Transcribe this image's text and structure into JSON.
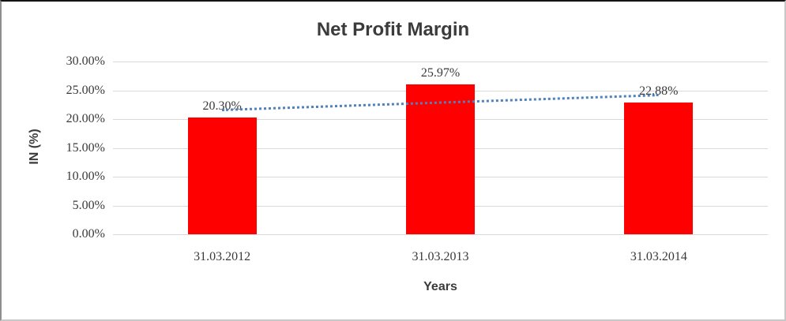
{
  "chart_data": {
    "type": "bar",
    "title": "Net Profit Margin",
    "xlabel": "Years",
    "ylabel": "IN (%)",
    "categories": [
      "31.03.2012",
      "31.03.2013",
      "31.03.2014"
    ],
    "values": [
      20.3,
      25.97,
      22.88
    ],
    "value_labels": [
      "20.30%",
      "25.97%",
      "22.88%"
    ],
    "ylim": [
      0,
      30
    ],
    "y_ticks": [
      {
        "value": 0,
        "label": "0.00%"
      },
      {
        "value": 5,
        "label": "5.00%"
      },
      {
        "value": 10,
        "label": "10.00%"
      },
      {
        "value": 15,
        "label": "15.00%"
      },
      {
        "value": 20,
        "label": "20.00%"
      },
      {
        "value": 25,
        "label": "25.00%"
      },
      {
        "value": 30,
        "label": "30.00%"
      }
    ],
    "grid": true,
    "legend_position": "none",
    "bar_color": "#ff0000",
    "gridline_color": "#d9d9d9",
    "text_color": "#3a3a3a",
    "trendline": {
      "type": "linear",
      "style": "dotted",
      "color": "#4f81bd"
    }
  }
}
